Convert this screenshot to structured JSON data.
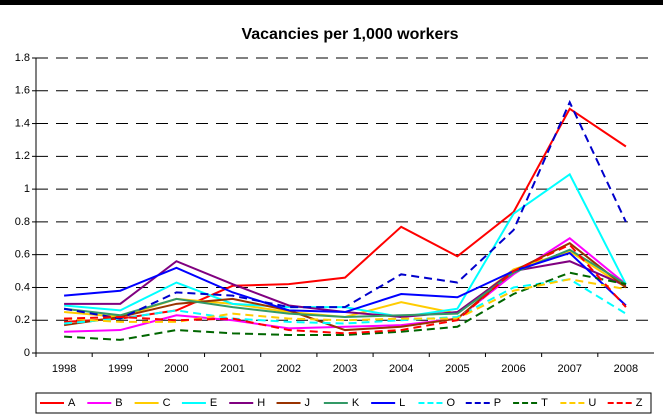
{
  "chart_data": {
    "type": "line",
    "title": "Vacancies per 1,000 workers",
    "categories": [
      "1998",
      "1999",
      "2000",
      "2001",
      "2002",
      "2003",
      "2004",
      "2005",
      "2006",
      "2007",
      "2008"
    ],
    "ylim": [
      0,
      1.8
    ],
    "yticks": [
      0,
      0.2,
      0.4,
      0.6,
      0.8,
      1,
      1.2,
      1.4,
      1.6,
      1.8
    ],
    "grid": true,
    "legend": "bottom",
    "series": [
      {
        "name": "A",
        "color": "#ff0000",
        "style": "solid",
        "values": [
          0.19,
          0.21,
          0.26,
          0.41,
          0.42,
          0.46,
          0.77,
          0.59,
          0.86,
          1.49,
          1.26
        ]
      },
      {
        "name": "B",
        "color": "#ff00ff",
        "style": "solid",
        "values": [
          0.13,
          0.14,
          0.23,
          0.2,
          0.15,
          0.16,
          0.17,
          0.21,
          0.48,
          0.7,
          0.42
        ]
      },
      {
        "name": "C",
        "color": "#ffcc00",
        "style": "solid",
        "values": [
          0.25,
          0.22,
          0.33,
          0.3,
          0.25,
          0.22,
          0.31,
          0.24,
          0.51,
          0.62,
          0.4
        ]
      },
      {
        "name": "E",
        "color": "#00ffff",
        "style": "solid",
        "values": [
          0.29,
          0.26,
          0.43,
          0.3,
          0.28,
          0.28,
          0.22,
          0.27,
          0.85,
          1.09,
          0.42
        ]
      },
      {
        "name": "H",
        "color": "#800080",
        "style": "solid",
        "values": [
          0.3,
          0.3,
          0.56,
          0.42,
          0.29,
          0.25,
          0.22,
          0.25,
          0.5,
          0.56,
          0.41
        ]
      },
      {
        "name": "J",
        "color": "#993300",
        "style": "solid",
        "values": [
          0.17,
          0.22,
          0.3,
          0.33,
          0.26,
          0.14,
          0.16,
          0.21,
          0.5,
          0.67,
          0.4
        ]
      },
      {
        "name": "K",
        "color": "#339966",
        "style": "solid",
        "values": [
          0.27,
          0.23,
          0.33,
          0.28,
          0.24,
          0.22,
          0.23,
          0.24,
          0.49,
          0.63,
          0.42
        ]
      },
      {
        "name": "L",
        "color": "#0000ff",
        "style": "solid",
        "values": [
          0.35,
          0.38,
          0.52,
          0.37,
          0.26,
          0.25,
          0.36,
          0.34,
          0.5,
          0.61,
          0.29
        ]
      },
      {
        "name": "O",
        "color": "#00ffff",
        "style": "dashed",
        "values": [
          0.18,
          0.21,
          0.26,
          0.21,
          0.19,
          0.18,
          0.2,
          0.22,
          0.4,
          0.45,
          0.24
        ]
      },
      {
        "name": "P",
        "color": "#0000cc",
        "style": "dashed",
        "values": [
          0.27,
          0.21,
          0.37,
          0.35,
          0.28,
          0.28,
          0.48,
          0.43,
          0.75,
          1.53,
          0.8
        ]
      },
      {
        "name": "T",
        "color": "#006600",
        "style": "dashed",
        "values": [
          0.1,
          0.08,
          0.14,
          0.12,
          0.11,
          0.11,
          0.13,
          0.16,
          0.36,
          0.49,
          0.42
        ]
      },
      {
        "name": "U",
        "color": "#ffcc00",
        "style": "dashed",
        "values": [
          0.21,
          0.19,
          0.19,
          0.24,
          0.21,
          0.2,
          0.21,
          0.21,
          0.38,
          0.45,
          0.39
        ]
      },
      {
        "name": "Z",
        "color": "#ff0000",
        "style": "dashed",
        "values": [
          0.21,
          0.22,
          0.2,
          0.21,
          0.14,
          0.12,
          0.14,
          0.2,
          0.5,
          0.66,
          0.28
        ]
      }
    ]
  }
}
